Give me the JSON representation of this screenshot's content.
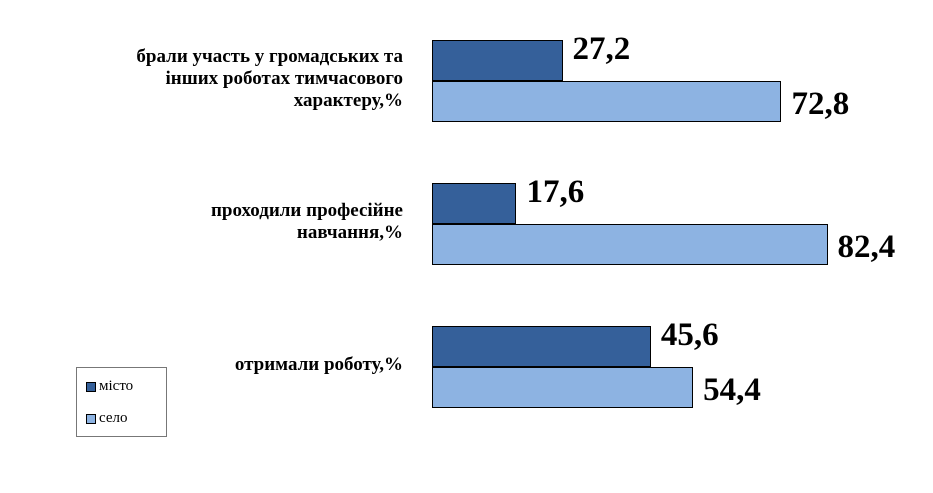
{
  "colors": {
    "city": "#35609a",
    "village": "#8db3e2"
  },
  "chart_data": {
    "type": "bar",
    "orientation": "horizontal",
    "categories": [
      "брали участь у громадських та інших роботах тимчасового характеру,%",
      "проходили професійне навчання,%",
      "отримали роботу,%"
    ],
    "category_lines": [
      [
        "брали участь  у громадських та",
        "інших роботах тимчасового",
        "характеру,%"
      ],
      [
        "проходили професійне",
        "навчання,%"
      ],
      [
        "отримали роботу,%"
      ]
    ],
    "series": [
      {
        "name": "місто",
        "values": [
          27.2,
          17.6,
          45.6
        ],
        "labels": [
          "27,2",
          "17,6",
          "45,6"
        ]
      },
      {
        "name": "село",
        "values": [
          72.8,
          82.4,
          54.4
        ],
        "labels": [
          "72,8",
          "82,4",
          "54,4"
        ]
      }
    ],
    "xlim": [
      0,
      100
    ],
    "grid": false,
    "legend": "bottom-left"
  }
}
